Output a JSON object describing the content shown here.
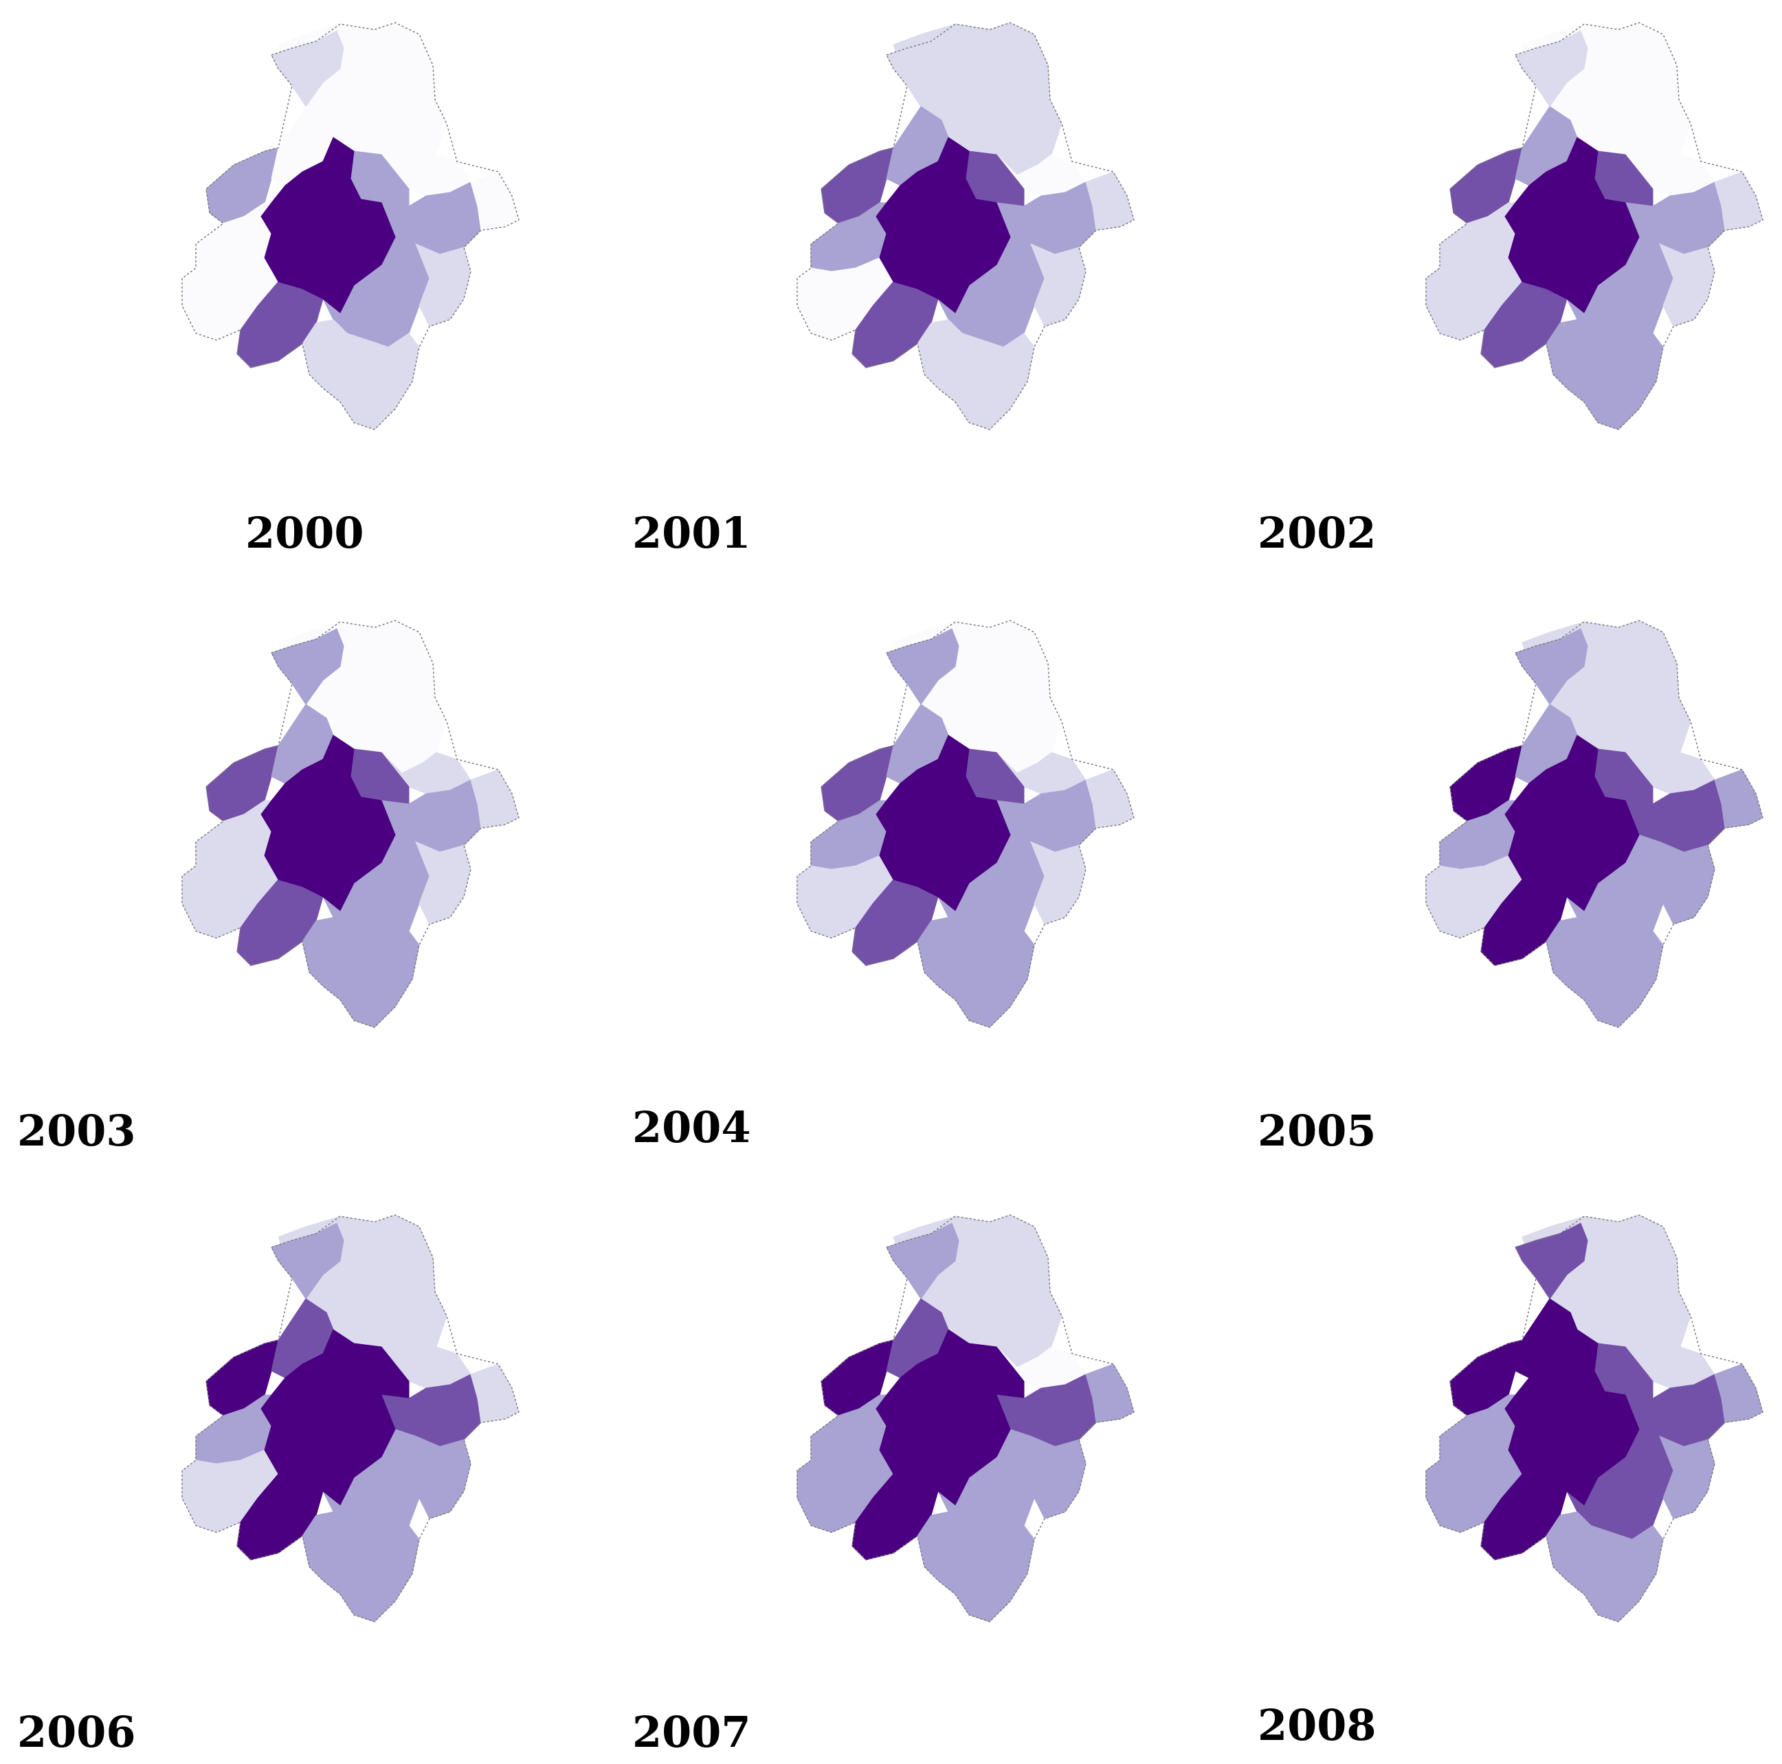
{
  "palette": {
    "class_0": "#fbfbfe",
    "class_1": "#dcdbee",
    "class_2": "#a8a3d2",
    "class_3": "#7451a8",
    "class_4": "#4a0080",
    "outline": "#7a7a7a"
  },
  "maps": [
    {
      "year_label": "2000",
      "levels": {
        "center": 4,
        "north_core": 0,
        "north_east": 0,
        "west_arm": 2,
        "nw_ring": 0,
        "ne_ring": 2,
        "east_arm": 2,
        "east_tip": 0,
        "sw_band": 3,
        "south": 2,
        "south_tail": 1,
        "west_lower": 0,
        "sw_outer": 0,
        "se_ring": 1,
        "north_arm": 1
      }
    },
    {
      "year_label": "2001",
      "levels": {
        "center": 4,
        "north_core": 1,
        "north_east": 0,
        "west_arm": 3,
        "nw_ring": 2,
        "ne_ring": 3,
        "east_arm": 2,
        "east_tip": 1,
        "sw_band": 3,
        "south": 2,
        "south_tail": 1,
        "west_lower": 2,
        "sw_outer": 0,
        "se_ring": 1,
        "north_arm": 1
      }
    },
    {
      "year_label": "2002",
      "levels": {
        "center": 4,
        "north_core": 0,
        "north_east": 0,
        "west_arm": 3,
        "nw_ring": 2,
        "ne_ring": 3,
        "east_arm": 2,
        "east_tip": 1,
        "sw_band": 3,
        "south": 2,
        "south_tail": 2,
        "west_lower": 1,
        "sw_outer": 1,
        "se_ring": 1,
        "north_arm": 1
      }
    },
    {
      "year_label": "2003",
      "levels": {
        "center": 4,
        "north_core": 0,
        "north_east": 1,
        "west_arm": 3,
        "nw_ring": 2,
        "ne_ring": 3,
        "east_arm": 2,
        "east_tip": 1,
        "sw_band": 3,
        "south": 2,
        "south_tail": 2,
        "west_lower": 1,
        "sw_outer": 1,
        "se_ring": 1,
        "north_arm": 2
      }
    },
    {
      "year_label": "2004",
      "levels": {
        "center": 4,
        "north_core": 0,
        "north_east": 1,
        "west_arm": 3,
        "nw_ring": 2,
        "ne_ring": 3,
        "east_arm": 2,
        "east_tip": 1,
        "sw_band": 3,
        "south": 2,
        "south_tail": 2,
        "west_lower": 2,
        "sw_outer": 1,
        "se_ring": 1,
        "north_arm": 2
      }
    },
    {
      "year_label": "2005",
      "levels": {
        "center": 4,
        "north_core": 1,
        "north_east": 1,
        "west_arm": 4,
        "nw_ring": 2,
        "ne_ring": 3,
        "east_arm": 3,
        "east_tip": 2,
        "sw_band": 4,
        "south": 2,
        "south_tail": 2,
        "west_lower": 2,
        "sw_outer": 1,
        "se_ring": 2,
        "north_arm": 2
      }
    },
    {
      "year_label": "2006",
      "levels": {
        "center": 4,
        "north_core": 1,
        "north_east": 1,
        "west_arm": 4,
        "nw_ring": 3,
        "ne_ring": 4,
        "east_arm": 3,
        "east_tip": 1,
        "sw_band": 4,
        "south": 2,
        "south_tail": 2,
        "west_lower": 2,
        "sw_outer": 1,
        "se_ring": 2,
        "north_arm": 2
      }
    },
    {
      "year_label": "2007",
      "levels": {
        "center": 4,
        "north_core": 1,
        "north_east": 0,
        "west_arm": 4,
        "nw_ring": 3,
        "ne_ring": 4,
        "east_arm": 3,
        "east_tip": 2,
        "sw_band": 4,
        "south": 2,
        "south_tail": 2,
        "west_lower": 2,
        "sw_outer": 2,
        "se_ring": 2,
        "north_arm": 2
      }
    },
    {
      "year_label": "2008",
      "levels": {
        "center": 4,
        "north_core": 1,
        "north_east": 1,
        "west_arm": 4,
        "nw_ring": 4,
        "ne_ring": 3,
        "east_arm": 3,
        "east_tip": 2,
        "sw_band": 4,
        "south": 3,
        "south_tail": 2,
        "west_lower": 2,
        "sw_outer": 2,
        "se_ring": 2,
        "north_arm": 3
      }
    }
  ]
}
